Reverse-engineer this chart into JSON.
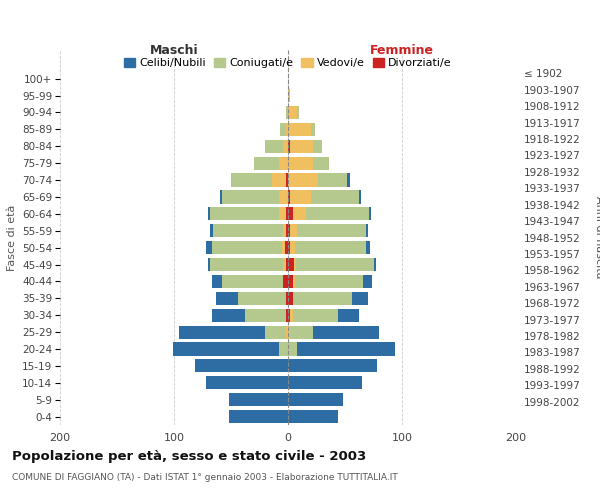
{
  "age_groups": [
    "0-4",
    "5-9",
    "10-14",
    "15-19",
    "20-24",
    "25-29",
    "30-34",
    "35-39",
    "40-44",
    "45-49",
    "50-54",
    "55-59",
    "60-64",
    "65-69",
    "70-74",
    "75-79",
    "80-84",
    "85-89",
    "90-94",
    "95-99",
    "100+"
  ],
  "birth_years": [
    "1998-2002",
    "1993-1997",
    "1988-1992",
    "1983-1987",
    "1978-1982",
    "1973-1977",
    "1968-1972",
    "1963-1967",
    "1958-1962",
    "1953-1957",
    "1948-1952",
    "1943-1947",
    "1938-1942",
    "1933-1937",
    "1928-1932",
    "1923-1927",
    "1918-1922",
    "1913-1917",
    "1908-1912",
    "1903-1907",
    "≤ 1902"
  ],
  "males": {
    "celibi": [
      52,
      52,
      72,
      82,
      93,
      76,
      29,
      19,
      9,
      2,
      5,
      2,
      2,
      2,
      0,
      0,
      0,
      0,
      0,
      0,
      0
    ],
    "coniugati": [
      0,
      0,
      0,
      0,
      8,
      18,
      36,
      42,
      54,
      64,
      62,
      62,
      60,
      50,
      36,
      22,
      16,
      5,
      2,
      0,
      0
    ],
    "vedovi": [
      0,
      0,
      0,
      0,
      0,
      2,
      0,
      0,
      0,
      2,
      2,
      2,
      6,
      8,
      12,
      8,
      4,
      2,
      0,
      0,
      0
    ],
    "divorziati": [
      0,
      0,
      0,
      0,
      0,
      0,
      2,
      2,
      4,
      2,
      3,
      2,
      2,
      0,
      2,
      0,
      0,
      0,
      0,
      0,
      0
    ]
  },
  "females": {
    "nubili": [
      44,
      48,
      65,
      78,
      86,
      58,
      18,
      14,
      8,
      2,
      4,
      2,
      2,
      2,
      2,
      0,
      0,
      0,
      0,
      0,
      0
    ],
    "coniugate": [
      0,
      0,
      0,
      0,
      8,
      20,
      40,
      52,
      60,
      68,
      62,
      60,
      55,
      42,
      26,
      14,
      8,
      4,
      2,
      0,
      0
    ],
    "vedove": [
      0,
      0,
      0,
      0,
      0,
      2,
      2,
      0,
      2,
      2,
      4,
      6,
      12,
      18,
      26,
      22,
      20,
      20,
      8,
      2,
      0
    ],
    "divorziate": [
      0,
      0,
      0,
      0,
      0,
      0,
      2,
      4,
      4,
      5,
      2,
      2,
      4,
      2,
      0,
      0,
      2,
      0,
      0,
      0,
      0
    ]
  },
  "colors": {
    "celibi": "#2e6da4",
    "coniugati": "#b5c98e",
    "vedovi": "#f0c060",
    "divorziati": "#cc2222"
  },
  "title": "Popolazione per età, sesso e stato civile - 2003",
  "subtitle": "COMUNE DI FAGGIANO (TA) - Dati ISTAT 1° gennaio 2003 - Elaborazione TUTTITALIA.IT",
  "label_maschi": "Maschi",
  "label_femmine": "Femmine",
  "ylabel_left": "Fasce di età",
  "ylabel_right": "Anni di nascita",
  "xlim": 200,
  "legend_labels": [
    "Celibi/Nubili",
    "Coniugati/e",
    "Vedovi/e",
    "Divorziati/e"
  ],
  "background_color": "#ffffff",
  "grid_color": "#cccccc",
  "bar_height": 0.78
}
